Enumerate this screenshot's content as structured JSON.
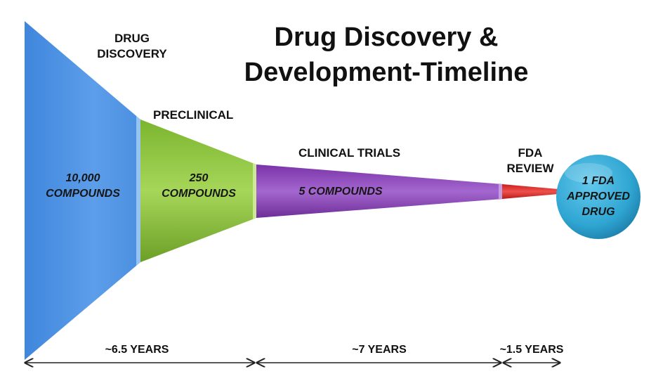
{
  "title": {
    "line1": "Drug Discovery &",
    "line2": "Development-Timeline"
  },
  "stages": [
    {
      "name_lines": [
        "DRUG",
        "DISCOVERY"
      ],
      "compounds_lines": [
        "10,000",
        "COMPOUNDS"
      ],
      "color": "#4f94e4"
    },
    {
      "name_lines": [
        "PRECLINICAL"
      ],
      "compounds_lines": [
        "250",
        "COMPOUNDS"
      ],
      "color": "#8cc63f"
    },
    {
      "name_lines": [
        "CLINICAL TRIALS"
      ],
      "compounds_lines": [
        "5 COMPOUNDS"
      ],
      "color": "#8a45b6"
    },
    {
      "name_lines": [
        "FDA",
        "REVIEW"
      ],
      "compounds_lines": [],
      "color": "#d9312e"
    }
  ],
  "outcome": {
    "lines": [
      "1 FDA",
      "APPROVED",
      "DRUG"
    ],
    "color": "#32a9d4"
  },
  "durations": [
    {
      "label": "~6.5 YEARS"
    },
    {
      "label": "~7 YEARS"
    },
    {
      "label": "~1.5 YEARS"
    }
  ]
}
